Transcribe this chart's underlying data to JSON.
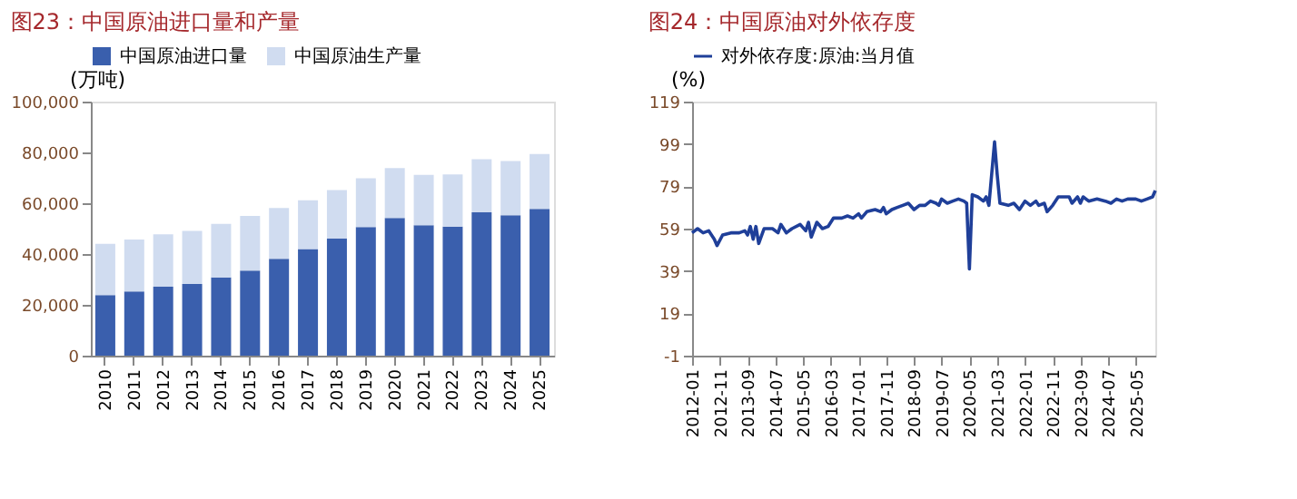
{
  "chart_data": [
    {
      "type": "bar",
      "title": "图23：中国原油进口量和产量",
      "ylabel": "(万吨)",
      "stacked": true,
      "legend": "top",
      "grid": false,
      "categories": [
        "2010",
        "2011",
        "2012",
        "2013",
        "2014",
        "2015",
        "2016",
        "2017",
        "2018",
        "2019",
        "2020",
        "2021",
        "2022",
        "2023",
        "2024",
        "2025"
      ],
      "ylim": [
        0,
        100000
      ],
      "yticks": [
        0,
        {
          "value": 20000,
          "label": "20,000"
        },
        {
          "value": 40000,
          "label": "40,000"
        },
        {
          "value": 60000,
          "label": "60,000"
        },
        {
          "value": 80000,
          "label": "80,000"
        },
        {
          "value": 100000,
          "label": "100,000"
        }
      ],
      "series": [
        {
          "name": "中国原油进口量",
          "color": "#3a5fad",
          "values": [
            23800,
            25300,
            27100,
            28200,
            30800,
            33500,
            38100,
            42000,
            46200,
            50600,
            54200,
            51300,
            50800,
            56400,
            55300,
            57800
          ]
        },
        {
          "name": "中国原油生产量",
          "color": "#d0dcf0",
          "values": [
            20200,
            20400,
            20700,
            20900,
            21100,
            21500,
            20000,
            19200,
            19000,
            19200,
            19600,
            19900,
            20500,
            20900,
            21300,
            21600
          ]
        }
      ]
    },
    {
      "type": "line",
      "title": "图24：中国原油对外依存度",
      "ylabel": "(%)",
      "legend": "top",
      "grid": false,
      "marker": "none",
      "line_style": "solid",
      "x": [
        "2012-01",
        "2012-03",
        "2012-05",
        "2012-07",
        "2012-09",
        "2012-10",
        "2012-12",
        "2013-03",
        "2013-06",
        "2013-08",
        "2013-09",
        "2013-10",
        "2013-11",
        "2013-12",
        "2014-01",
        "2014-03",
        "2014-06",
        "2014-08",
        "2014-09",
        "2014-11",
        "2015-01",
        "2015-04",
        "2015-06",
        "2015-07",
        "2015-08",
        "2015-10",
        "2015-12",
        "2016-02",
        "2016-04",
        "2016-07",
        "2016-09",
        "2016-11",
        "2017-01",
        "2017-02",
        "2017-04",
        "2017-07",
        "2017-09",
        "2017-10",
        "2017-11",
        "2018-01",
        "2018-03",
        "2018-05",
        "2018-07",
        "2018-09",
        "2018-11",
        "2019-01",
        "2019-03",
        "2019-05",
        "2019-06",
        "2019-07",
        "2019-09",
        "2019-11",
        "2020-01",
        "2020-03",
        "2020-04",
        "2020-05",
        "2020-06",
        "2020-08",
        "2020-10",
        "2020-11",
        "2020-12",
        "2021-02",
        "2021-03",
        "2021-04",
        "2021-07",
        "2021-09",
        "2021-11",
        "2022-01",
        "2022-03",
        "2022-05",
        "2022-06",
        "2022-08",
        "2022-09",
        "2022-11",
        "2023-01",
        "2023-03",
        "2023-05",
        "2023-06",
        "2023-08",
        "2023-09",
        "2023-10",
        "2023-12",
        "2024-03",
        "2024-06",
        "2024-08",
        "2024-10",
        "2024-12",
        "2025-02",
        "2025-05",
        "2025-07",
        "2025-09",
        "2025-11",
        "2025-12"
      ],
      "xlim": [
        "2012-01",
        "2025-12"
      ],
      "xticks": [
        "2012-01",
        "2012-11",
        "2013-09",
        "2014-07",
        "2015-05",
        "2016-03",
        "2017-01",
        "2017-11",
        "2018-09",
        "2019-07",
        "2020-05",
        "2021-03",
        "2022-01",
        "2022-11",
        "2023-09",
        "2024-07",
        "2025-05"
      ],
      "ylim": [
        -1,
        119
      ],
      "yticks": [
        -1,
        19,
        39,
        59,
        79,
        99,
        119
      ],
      "series": [
        {
          "name": "对外依存度:原油:当月值",
          "color": "#1f3f99",
          "values": [
            57,
            59,
            57,
            58,
            54,
            51,
            56,
            57,
            57,
            58,
            56,
            60,
            54,
            60,
            52,
            59,
            59,
            57,
            61,
            57,
            59,
            61,
            58,
            62,
            55,
            62,
            59,
            60,
            64,
            64,
            65,
            64,
            66,
            64,
            67,
            68,
            67,
            69,
            66,
            68,
            69,
            70,
            71,
            68,
            70,
            70,
            72,
            71,
            70,
            73,
            71,
            72,
            73,
            72,
            71,
            40,
            75,
            74,
            72,
            74,
            70,
            100,
            85,
            71,
            70,
            71,
            68,
            72,
            70,
            72,
            70,
            71,
            67,
            70,
            74,
            74,
            74,
            71,
            74,
            71,
            74,
            72,
            73,
            72,
            71,
            73,
            72,
            73,
            73,
            72,
            73,
            74,
            77
          ]
        }
      ]
    }
  ]
}
